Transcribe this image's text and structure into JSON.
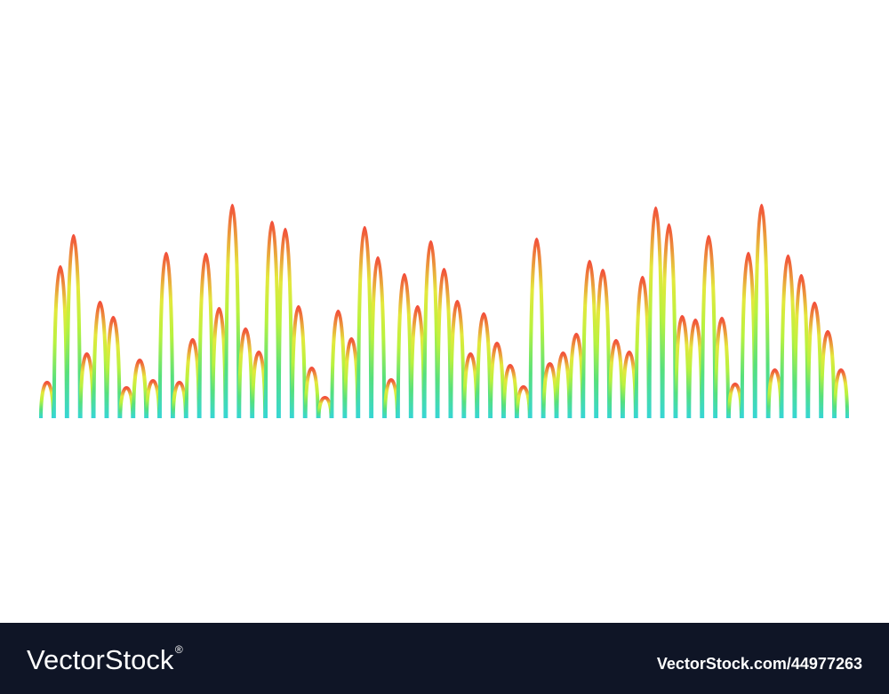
{
  "footer": {
    "brand": "VectorStock",
    "brand_mark": "®",
    "image_id": "VectorStock.com/44977263"
  }
}
